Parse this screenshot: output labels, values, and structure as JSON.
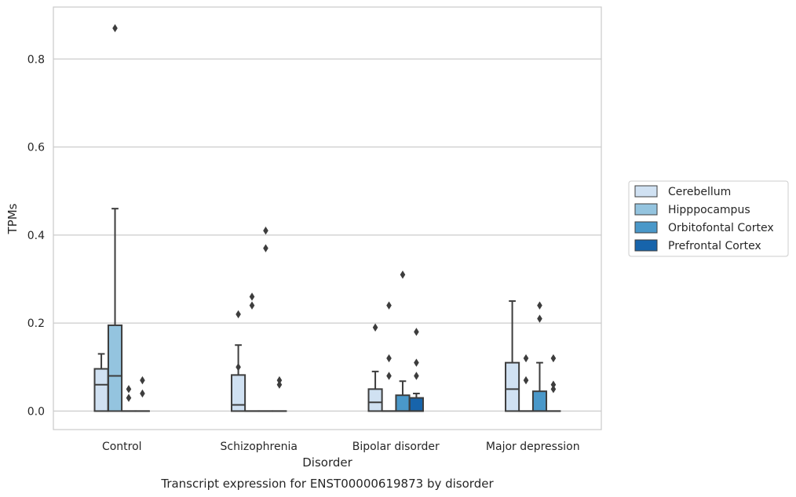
{
  "chart_data": {
    "type": "box",
    "title": "",
    "caption": "Transcript expression for ENST00000619873 by disorder",
    "xlabel": "Disorder",
    "ylabel": "TPMs",
    "ylim": [
      -0.042,
      0.918
    ],
    "yticks": [
      0.0,
      0.2,
      0.4,
      0.6,
      0.8
    ],
    "ytick_labels": [
      "0.0",
      "0.2",
      "0.4",
      "0.6",
      "0.8"
    ],
    "grid": "horizontal",
    "legend_position": "right",
    "categories": [
      "Control",
      "Schizophrenia",
      "Bipolar disorder",
      "Major depression"
    ],
    "series": [
      {
        "name": "Cerebellum",
        "color": "#d0e1f2",
        "boxes": [
          {
            "q1": 0.0,
            "median": 0.06,
            "q3": 0.096,
            "whisker_low": 0.0,
            "whisker_high": 0.13,
            "outliers": []
          },
          {
            "q1": 0.0,
            "median": 0.014,
            "q3": 0.082,
            "whisker_low": 0.0,
            "whisker_high": 0.15,
            "outliers": [
              0.22,
              0.1
            ]
          },
          {
            "q1": 0.0,
            "median": 0.02,
            "q3": 0.05,
            "whisker_low": 0.0,
            "whisker_high": 0.09,
            "outliers": [
              0.19
            ]
          },
          {
            "q1": 0.0,
            "median": 0.05,
            "q3": 0.11,
            "whisker_low": 0.0,
            "whisker_high": 0.25,
            "outliers": []
          }
        ]
      },
      {
        "name": "Hipppocampus",
        "color": "#94c4df",
        "boxes": [
          {
            "q1": 0.0,
            "median": 0.08,
            "q3": 0.195,
            "whisker_low": 0.0,
            "whisker_high": 0.46,
            "outliers": [
              0.87
            ]
          },
          {
            "q1": 0.0,
            "median": 0.0,
            "q3": 0.0,
            "whisker_low": 0.0,
            "whisker_high": 0.0,
            "outliers": [
              0.26,
              0.24
            ]
          },
          {
            "q1": 0.0,
            "median": 0.0,
            "q3": 0.0,
            "whisker_low": 0.0,
            "whisker_high": 0.0,
            "outliers": [
              0.24,
              0.12,
              0.08
            ]
          },
          {
            "q1": 0.0,
            "median": 0.0,
            "q3": 0.0,
            "whisker_low": 0.0,
            "whisker_high": 0.0,
            "outliers": [
              0.12,
              0.07
            ]
          }
        ]
      },
      {
        "name": "Orbitofontal Cortex",
        "color": "#4a98c9",
        "boxes": [
          {
            "q1": 0.0,
            "median": 0.0,
            "q3": 0.0,
            "whisker_low": 0.0,
            "whisker_high": 0.0,
            "outliers": [
              0.05,
              0.03
            ]
          },
          {
            "q1": 0.0,
            "median": 0.0,
            "q3": 0.0,
            "whisker_low": 0.0,
            "whisker_high": 0.0,
            "outliers": [
              0.41,
              0.37
            ]
          },
          {
            "q1": 0.0,
            "median": 0.0,
            "q3": 0.036,
            "whisker_low": 0.0,
            "whisker_high": 0.068,
            "outliers": [
              0.31
            ]
          },
          {
            "q1": 0.0,
            "median": 0.0,
            "q3": 0.045,
            "whisker_low": 0.0,
            "whisker_high": 0.11,
            "outliers": [
              0.24,
              0.21
            ]
          }
        ]
      },
      {
        "name": "Prefrontal Cortex",
        "color": "#1764ab",
        "boxes": [
          {
            "q1": 0.0,
            "median": 0.0,
            "q3": 0.0,
            "whisker_low": 0.0,
            "whisker_high": 0.0,
            "outliers": [
              0.07,
              0.04
            ]
          },
          {
            "q1": 0.0,
            "median": 0.0,
            "q3": 0.0,
            "whisker_low": 0.0,
            "whisker_high": 0.0,
            "outliers": [
              0.07,
              0.06
            ]
          },
          {
            "q1": 0.0,
            "median": 0.0,
            "q3": 0.03,
            "whisker_low": 0.0,
            "whisker_high": 0.04,
            "outliers": [
              0.18,
              0.11,
              0.08
            ]
          },
          {
            "q1": 0.0,
            "median": 0.0,
            "q3": 0.0,
            "whisker_low": 0.0,
            "whisker_high": 0.0,
            "outliers": [
              0.12,
              0.06,
              0.05
            ]
          }
        ]
      }
    ]
  }
}
